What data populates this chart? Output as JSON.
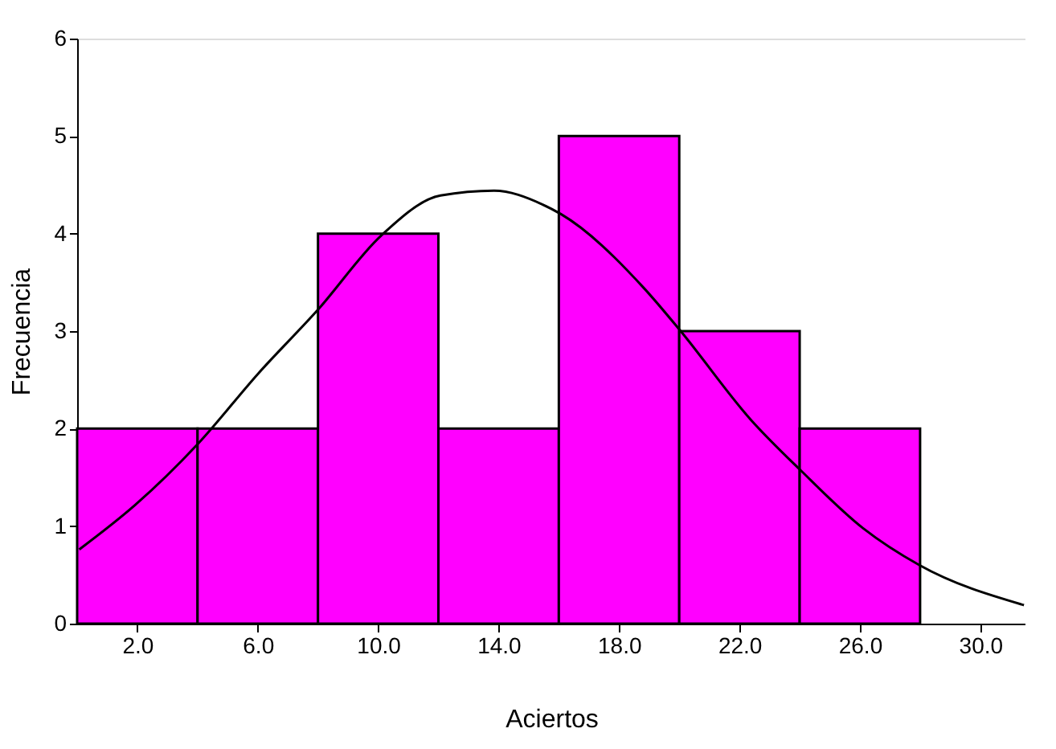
{
  "chart_data": {
    "type": "histogram",
    "xlabel": "Aciertos",
    "ylabel": "Frecuencia",
    "bins": [
      0,
      4,
      8,
      12,
      16,
      20,
      24,
      28
    ],
    "values": [
      2,
      2,
      4,
      2,
      5,
      3,
      2
    ],
    "color": "#ff00ff",
    "series": [
      {
        "type": "line",
        "color": "#000000",
        "x": [
          0.07,
          1.94,
          4.0,
          6.03,
          8.0,
          10.1,
          12.07,
          13.85,
          15.45,
          16.07,
          18.83,
          20.02,
          22.38,
          24.04,
          26.1,
          27.98,
          31.45
        ],
        "values": [
          0.76,
          1.22,
          1.84,
          2.57,
          3.22,
          3.98,
          4.39,
          4.44,
          4.3,
          4.2,
          3.44,
          3.01,
          2.09,
          1.57,
          0.98,
          0.6,
          0.19
        ]
      }
    ],
    "xlim": [
      0,
      31.5
    ],
    "xticks": [
      {
        "value": 2,
        "label": "2.0"
      },
      {
        "value": 6,
        "label": "6.0"
      },
      {
        "value": 10,
        "label": "10.0"
      },
      {
        "value": 14,
        "label": "14.0"
      },
      {
        "value": 18,
        "label": "18.0"
      },
      {
        "value": 22,
        "label": "22.0"
      },
      {
        "value": 26,
        "label": "26.0"
      },
      {
        "value": 30,
        "label": "30.0"
      }
    ],
    "ylim": [
      0,
      6
    ],
    "yticks": [
      0,
      1,
      2,
      3,
      4,
      5,
      6
    ],
    "grid": false
  }
}
